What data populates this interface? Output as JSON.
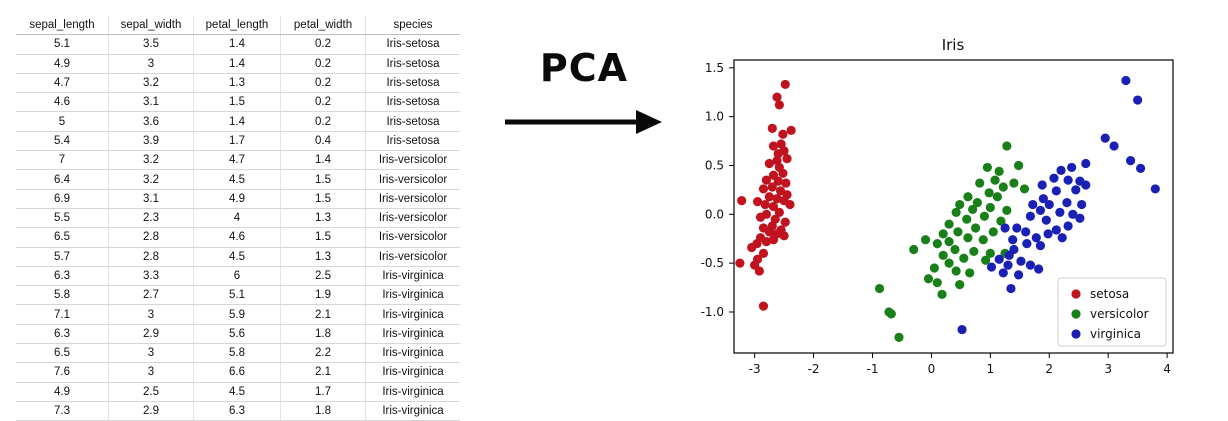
{
  "table": {
    "headers": [
      "sepal_length",
      "sepal_width",
      "petal_length",
      "petal_width",
      "species"
    ],
    "rows": [
      [
        "5.1",
        "3.5",
        "1.4",
        "0.2",
        "Iris-setosa"
      ],
      [
        "4.9",
        "3",
        "1.4",
        "0.2",
        "Iris-setosa"
      ],
      [
        "4.7",
        "3.2",
        "1.3",
        "0.2",
        "Iris-setosa"
      ],
      [
        "4.6",
        "3.1",
        "1.5",
        "0.2",
        "Iris-setosa"
      ],
      [
        "5",
        "3.6",
        "1.4",
        "0.2",
        "Iris-setosa"
      ],
      [
        "5.4",
        "3.9",
        "1.7",
        "0.4",
        "Iris-setosa"
      ],
      [
        "7",
        "3.2",
        "4.7",
        "1.4",
        "Iris-versicolor"
      ],
      [
        "6.4",
        "3.2",
        "4.5",
        "1.5",
        "Iris-versicolor"
      ],
      [
        "6.9",
        "3.1",
        "4.9",
        "1.5",
        "Iris-versicolor"
      ],
      [
        "5.5",
        "2.3",
        "4",
        "1.3",
        "Iris-versicolor"
      ],
      [
        "6.5",
        "2.8",
        "4.6",
        "1.5",
        "Iris-versicolor"
      ],
      [
        "5.7",
        "2.8",
        "4.5",
        "1.3",
        "Iris-versicolor"
      ],
      [
        "6.3",
        "3.3",
        "6",
        "2.5",
        "Iris-virginica"
      ],
      [
        "5.8",
        "2.7",
        "5.1",
        "1.9",
        "Iris-virginica"
      ],
      [
        "7.1",
        "3",
        "5.9",
        "2.1",
        "Iris-virginica"
      ],
      [
        "6.3",
        "2.9",
        "5.6",
        "1.8",
        "Iris-virginica"
      ],
      [
        "6.5",
        "3",
        "5.8",
        "2.2",
        "Iris-virginica"
      ],
      [
        "7.6",
        "3",
        "6.6",
        "2.1",
        "Iris-virginica"
      ],
      [
        "4.9",
        "2.5",
        "4.5",
        "1.7",
        "Iris-virginica"
      ],
      [
        "7.3",
        "2.9",
        "6.3",
        "1.8",
        "Iris-virginica"
      ]
    ]
  },
  "arrow": {
    "label": "PCA"
  },
  "chart_data": {
    "type": "scatter",
    "title": "Iris",
    "xlabel": "",
    "ylabel": "",
    "xlim": [
      -3.35,
      4.1
    ],
    "ylim": [
      -1.42,
      1.58
    ],
    "xticks": [
      -3,
      -2,
      -1,
      0,
      1,
      2,
      3,
      4
    ],
    "yticks": [
      1.5,
      1.0,
      0.5,
      0.0,
      -0.5,
      -1.0
    ],
    "ytick_labels": [
      "1.5",
      "1.0",
      "0.5",
      "0.0",
      "-0.5",
      "-1.0"
    ],
    "grid": false,
    "legend_position": "bottom-right",
    "series": [
      {
        "name": "setosa",
        "color": "#c0121f",
        "points": [
          [
            -2.48,
            1.33
          ],
          [
            -2.62,
            1.2
          ],
          [
            -2.58,
            1.12
          ],
          [
            -2.7,
            0.88
          ],
          [
            -2.52,
            0.82
          ],
          [
            -2.38,
            0.86
          ],
          [
            -2.55,
            0.72
          ],
          [
            -2.68,
            0.7
          ],
          [
            -2.6,
            0.62
          ],
          [
            -2.5,
            0.65
          ],
          [
            -2.45,
            0.57
          ],
          [
            -2.62,
            0.55
          ],
          [
            -2.75,
            0.52
          ],
          [
            -2.58,
            0.48
          ],
          [
            -2.52,
            0.42
          ],
          [
            -2.68,
            0.4
          ],
          [
            -2.8,
            0.35
          ],
          [
            -2.6,
            0.34
          ],
          [
            -2.47,
            0.32
          ],
          [
            -2.7,
            0.28
          ],
          [
            -2.85,
            0.26
          ],
          [
            -2.56,
            0.24
          ],
          [
            -2.45,
            0.2
          ],
          [
            -2.75,
            0.18
          ],
          [
            -2.62,
            0.16
          ],
          [
            -2.5,
            0.14
          ],
          [
            -2.95,
            0.13
          ],
          [
            -3.22,
            0.14
          ],
          [
            -2.82,
            0.1
          ],
          [
            -2.68,
            0.08
          ],
          [
            -2.4,
            0.1
          ],
          [
            -2.58,
            0.02
          ],
          [
            -2.8,
            0.0
          ],
          [
            -2.9,
            -0.03
          ],
          [
            -2.65,
            -0.05
          ],
          [
            -2.48,
            -0.08
          ],
          [
            -2.7,
            -0.12
          ],
          [
            -2.85,
            -0.14
          ],
          [
            -2.55,
            -0.16
          ],
          [
            -2.75,
            -0.18
          ],
          [
            -2.62,
            -0.2
          ],
          [
            -2.5,
            -0.22
          ],
          [
            -2.9,
            -0.24
          ],
          [
            -2.68,
            -0.26
          ],
          [
            -2.8,
            -0.28
          ],
          [
            -2.96,
            -0.3
          ],
          [
            -3.05,
            -0.34
          ],
          [
            -2.85,
            -0.4
          ],
          [
            -2.95,
            -0.46
          ],
          [
            -3.0,
            -0.52
          ],
          [
            -3.25,
            -0.5
          ],
          [
            -2.92,
            -0.58
          ],
          [
            -2.85,
            -0.94
          ]
        ]
      },
      {
        "name": "versicolor",
        "color": "#198019",
        "points": [
          [
            1.28,
            0.7
          ],
          [
            0.95,
            0.48
          ],
          [
            1.15,
            0.44
          ],
          [
            1.48,
            0.5
          ],
          [
            0.82,
            0.32
          ],
          [
            1.08,
            0.35
          ],
          [
            1.4,
            0.32
          ],
          [
            1.22,
            0.28
          ],
          [
            1.58,
            0.26
          ],
          [
            0.98,
            0.22
          ],
          [
            0.62,
            0.18
          ],
          [
            1.12,
            0.18
          ],
          [
            0.78,
            0.12
          ],
          [
            0.48,
            0.1
          ],
          [
            1.0,
            0.07
          ],
          [
            0.7,
            0.05
          ],
          [
            1.28,
            0.04
          ],
          [
            0.42,
            0.02
          ],
          [
            0.9,
            -0.02
          ],
          [
            0.6,
            -0.05
          ],
          [
            1.18,
            -0.07
          ],
          [
            0.3,
            -0.1
          ],
          [
            0.75,
            -0.14
          ],
          [
            1.05,
            -0.18
          ],
          [
            0.45,
            -0.18
          ],
          [
            0.2,
            -0.2
          ],
          [
            0.62,
            -0.24
          ],
          [
            0.88,
            -0.26
          ],
          [
            -0.1,
            -0.26
          ],
          [
            0.3,
            -0.28
          ],
          [
            0.1,
            -0.3
          ],
          [
            -0.3,
            -0.36
          ],
          [
            0.4,
            -0.36
          ],
          [
            0.72,
            -0.38
          ],
          [
            1.0,
            -0.4
          ],
          [
            0.2,
            -0.42
          ],
          [
            0.55,
            -0.45
          ],
          [
            0.92,
            -0.47
          ],
          [
            1.25,
            -0.4
          ],
          [
            0.3,
            -0.5
          ],
          [
            0.05,
            -0.55
          ],
          [
            0.42,
            -0.58
          ],
          [
            0.65,
            -0.6
          ],
          [
            -0.05,
            -0.66
          ],
          [
            0.1,
            -0.7
          ],
          [
            0.48,
            -0.72
          ],
          [
            0.18,
            -0.82
          ],
          [
            -0.88,
            -0.76
          ],
          [
            -0.72,
            -1.0
          ],
          [
            -0.68,
            -1.02
          ],
          [
            -0.55,
            -1.26
          ]
        ]
      },
      {
        "name": "virginica",
        "color": "#1a20b4",
        "points": [
          [
            3.3,
            1.37
          ],
          [
            3.5,
            1.17
          ],
          [
            2.95,
            0.78
          ],
          [
            3.1,
            0.7
          ],
          [
            3.38,
            0.55
          ],
          [
            3.55,
            0.47
          ],
          [
            3.8,
            0.26
          ],
          [
            2.62,
            0.52
          ],
          [
            2.38,
            0.48
          ],
          [
            2.2,
            0.45
          ],
          [
            2.08,
            0.37
          ],
          [
            2.32,
            0.35
          ],
          [
            2.52,
            0.34
          ],
          [
            2.62,
            0.3
          ],
          [
            2.45,
            0.25
          ],
          [
            2.12,
            0.24
          ],
          [
            1.88,
            0.3
          ],
          [
            1.9,
            0.16
          ],
          [
            2.0,
            0.1
          ],
          [
            2.3,
            0.12
          ],
          [
            2.55,
            0.1
          ],
          [
            1.72,
            0.1
          ],
          [
            1.85,
            0.04
          ],
          [
            2.18,
            0.02
          ],
          [
            2.4,
            0.0
          ],
          [
            1.68,
            -0.02
          ],
          [
            2.52,
            -0.04
          ],
          [
            1.95,
            -0.06
          ],
          [
            1.25,
            -0.14
          ],
          [
            1.45,
            -0.14
          ],
          [
            2.32,
            -0.12
          ],
          [
            2.12,
            -0.16
          ],
          [
            1.6,
            -0.18
          ],
          [
            1.98,
            -0.2
          ],
          [
            1.78,
            -0.24
          ],
          [
            1.38,
            -0.26
          ],
          [
            2.22,
            -0.24
          ],
          [
            1.62,
            -0.3
          ],
          [
            1.85,
            -0.32
          ],
          [
            1.4,
            -0.36
          ],
          [
            1.32,
            -0.42
          ],
          [
            1.15,
            -0.46
          ],
          [
            1.52,
            -0.48
          ],
          [
            1.3,
            -0.52
          ],
          [
            1.68,
            -0.52
          ],
          [
            1.82,
            -0.56
          ],
          [
            1.02,
            -0.54
          ],
          [
            1.22,
            -0.6
          ],
          [
            1.48,
            -0.62
          ],
          [
            1.35,
            -0.76
          ],
          [
            0.52,
            -1.18
          ]
        ]
      }
    ]
  }
}
